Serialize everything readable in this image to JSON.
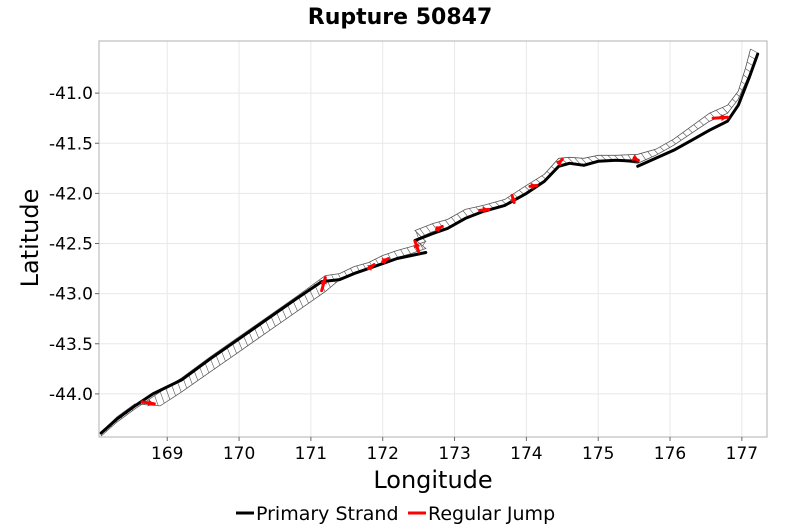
{
  "chart_data": {
    "type": "line",
    "title": "Rupture 50847",
    "xlabel": "Longitude",
    "ylabel": "Latitude",
    "xlim": [
      168.05,
      177.35
    ],
    "ylim": [
      -44.43,
      -40.48
    ],
    "x_ticks": [
      169,
      170,
      171,
      172,
      173,
      174,
      175,
      176,
      177
    ],
    "y_ticks": [
      -41.0,
      -41.5,
      -42.0,
      -42.5,
      -43.0,
      -43.5,
      -44.0
    ],
    "x_tick_labels": [
      "169",
      "170",
      "171",
      "172",
      "173",
      "174",
      "175",
      "176",
      "177"
    ],
    "y_tick_labels": [
      "-41.0",
      "-41.5",
      "-42.0",
      "-42.5",
      "-43.0",
      "-43.5",
      "-44.0"
    ],
    "grid": true,
    "legend_position": "bottom",
    "series": [
      {
        "name": "Primary Strand",
        "color": "#000000",
        "segments": [
          [
            [
              168.08,
              -44.39
            ],
            [
              168.3,
              -44.25
            ],
            [
              168.55,
              -44.12
            ],
            [
              168.8,
              -44.0
            ],
            [
              169.2,
              -43.86
            ],
            [
              169.6,
              -43.65
            ],
            [
              170.0,
              -43.45
            ],
            [
              170.4,
              -43.25
            ],
            [
              170.8,
              -43.05
            ],
            [
              171.15,
              -42.88
            ],
            [
              171.4,
              -42.86
            ],
            [
              171.6,
              -42.8
            ],
            [
              171.8,
              -42.75
            ],
            [
              172.0,
              -42.7
            ],
            [
              172.2,
              -42.65
            ],
            [
              172.4,
              -42.62
            ],
            [
              172.6,
              -42.59
            ]
          ],
          [
            [
              172.45,
              -42.47
            ],
            [
              172.7,
              -42.4
            ],
            [
              172.9,
              -42.35
            ],
            [
              173.15,
              -42.25
            ],
            [
              173.4,
              -42.18
            ],
            [
              173.7,
              -42.12
            ],
            [
              173.85,
              -42.06
            ],
            [
              174.0,
              -42.0
            ],
            [
              174.25,
              -41.88
            ],
            [
              174.45,
              -41.73
            ],
            [
              174.6,
              -41.7
            ],
            [
              174.8,
              -41.72
            ],
            [
              175.0,
              -41.68
            ],
            [
              175.25,
              -41.67
            ],
            [
              175.55,
              -41.68
            ]
          ],
          [
            [
              175.55,
              -41.73
            ],
            [
              175.8,
              -41.65
            ],
            [
              176.05,
              -41.57
            ],
            [
              176.3,
              -41.47
            ],
            [
              176.55,
              -41.37
            ],
            [
              176.8,
              -41.28
            ],
            [
              176.95,
              -41.12
            ],
            [
              177.1,
              -40.85
            ],
            [
              177.22,
              -40.61
            ]
          ]
        ]
      },
      {
        "name": "Regular Jump",
        "color": "#ff0000",
        "segments": [
          [
            [
              168.65,
              -44.08
            ],
            [
              168.82,
              -44.1
            ]
          ],
          [
            [
              171.15,
              -42.97
            ],
            [
              171.2,
              -42.84
            ]
          ],
          [
            [
              171.8,
              -42.75
            ],
            [
              171.88,
              -42.71
            ]
          ],
          [
            [
              172.0,
              -42.68
            ],
            [
              172.08,
              -42.65
            ]
          ],
          [
            [
              172.5,
              -42.58
            ],
            [
              172.45,
              -42.48
            ]
          ],
          [
            [
              172.75,
              -42.36
            ],
            [
              172.83,
              -42.33
            ]
          ],
          [
            [
              173.35,
              -42.17
            ],
            [
              173.48,
              -42.16
            ]
          ],
          [
            [
              173.83,
              -42.09
            ],
            [
              173.8,
              -42.02
            ]
          ],
          [
            [
              174.05,
              -41.93
            ],
            [
              174.15,
              -41.92
            ]
          ],
          [
            [
              174.45,
              -41.7
            ],
            [
              174.5,
              -41.66
            ]
          ],
          [
            [
              175.5,
              -41.65
            ],
            [
              175.56,
              -41.67
            ]
          ],
          [
            [
              176.6,
              -41.25
            ],
            [
              176.8,
              -41.24
            ]
          ]
        ]
      }
    ],
    "surface": {
      "color": "#555555",
      "outline": [
        [
          [
            168.08,
            -44.42
          ],
          [
            168.3,
            -44.28
          ],
          [
            168.55,
            -44.15
          ],
          [
            168.9,
            -43.98
          ],
          [
            169.2,
            -43.84
          ],
          [
            169.6,
            -43.63
          ],
          [
            170.0,
            -43.43
          ],
          [
            170.4,
            -43.23
          ],
          [
            170.8,
            -43.03
          ],
          [
            171.2,
            -42.82
          ],
          [
            171.4,
            -42.8
          ],
          [
            171.6,
            -42.73
          ],
          [
            171.8,
            -42.69
          ],
          [
            172.0,
            -42.62
          ],
          [
            172.2,
            -42.57
          ],
          [
            172.4,
            -42.53
          ],
          [
            172.6,
            -42.48
          ],
          [
            172.45,
            -42.37
          ],
          [
            172.7,
            -42.3
          ],
          [
            172.9,
            -42.26
          ],
          [
            173.15,
            -42.16
          ],
          [
            173.4,
            -42.12
          ],
          [
            173.7,
            -42.06
          ],
          [
            173.85,
            -41.99
          ],
          [
            174.0,
            -41.92
          ],
          [
            174.25,
            -41.81
          ],
          [
            174.45,
            -41.65
          ],
          [
            174.6,
            -41.64
          ],
          [
            174.8,
            -41.65
          ],
          [
            175.0,
            -41.62
          ],
          [
            175.25,
            -41.62
          ],
          [
            175.55,
            -41.61
          ],
          [
            175.8,
            -41.56
          ],
          [
            176.05,
            -41.46
          ],
          [
            176.3,
            -41.33
          ],
          [
            176.55,
            -41.2
          ],
          [
            176.8,
            -41.12
          ],
          [
            176.95,
            -40.98
          ],
          [
            177.05,
            -40.75
          ],
          [
            177.12,
            -40.56
          ]
        ],
        [
          [
            168.08,
            -44.38
          ],
          [
            168.3,
            -44.23
          ],
          [
            168.55,
            -44.1
          ],
          [
            168.9,
            -44.12
          ],
          [
            169.2,
            -43.98
          ],
          [
            169.6,
            -43.78
          ],
          [
            170.0,
            -43.58
          ],
          [
            170.4,
            -43.38
          ],
          [
            170.8,
            -43.18
          ],
          [
            171.2,
            -42.98
          ],
          [
            171.4,
            -42.86
          ],
          [
            171.6,
            -42.8
          ],
          [
            171.8,
            -42.75
          ],
          [
            172.0,
            -42.7
          ],
          [
            172.2,
            -42.64
          ],
          [
            172.4,
            -42.6
          ],
          [
            172.6,
            -42.55
          ],
          [
            172.45,
            -42.46
          ],
          [
            172.7,
            -42.38
          ],
          [
            172.9,
            -42.34
          ],
          [
            173.15,
            -42.24
          ],
          [
            173.4,
            -42.18
          ],
          [
            173.7,
            -42.12
          ],
          [
            173.85,
            -42.06
          ],
          [
            174.0,
            -41.99
          ],
          [
            174.25,
            -41.88
          ],
          [
            174.45,
            -41.72
          ],
          [
            174.6,
            -41.69
          ],
          [
            174.8,
            -41.71
          ],
          [
            175.0,
            -41.67
          ],
          [
            175.25,
            -41.67
          ],
          [
            175.55,
            -41.7
          ],
          [
            175.8,
            -41.62
          ],
          [
            176.05,
            -41.52
          ],
          [
            176.3,
            -41.4
          ],
          [
            176.55,
            -41.28
          ],
          [
            176.8,
            -41.2
          ],
          [
            176.95,
            -41.06
          ],
          [
            177.1,
            -40.82
          ],
          [
            177.22,
            -40.6
          ]
        ]
      ],
      "hatch_count": 120
    }
  }
}
